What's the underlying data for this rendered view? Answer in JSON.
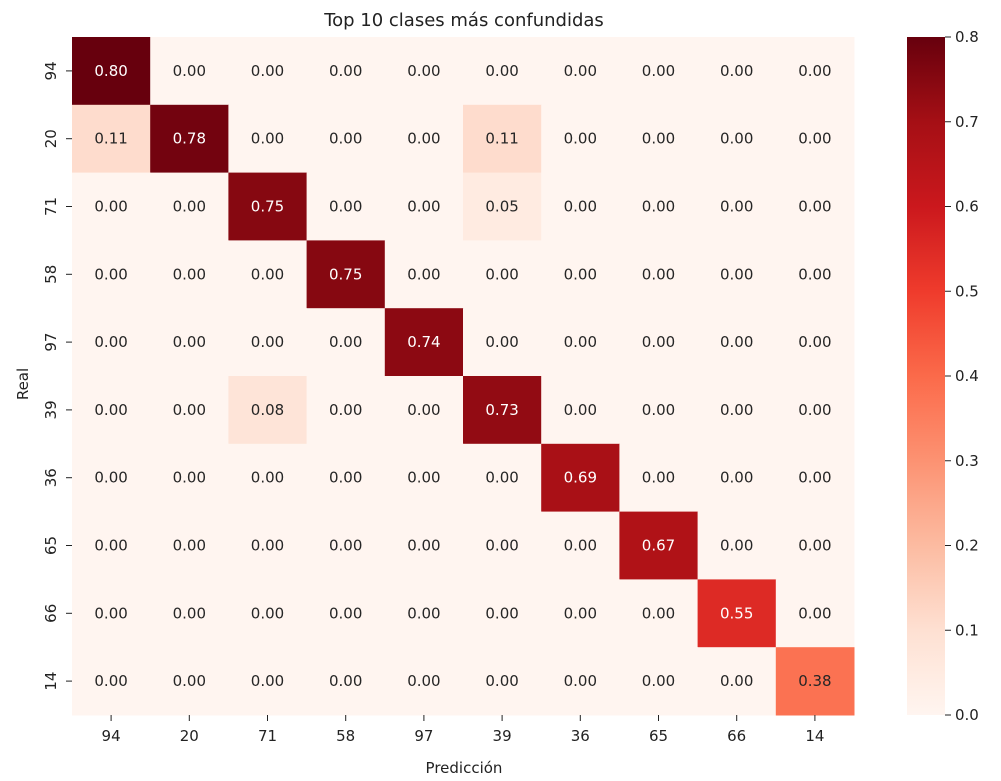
{
  "chart_data": {
    "type": "heatmap",
    "title": "Top 10 clases más confundidas",
    "xlabel": "Predicción",
    "ylabel": "Real",
    "x_categories": [
      "94",
      "20",
      "71",
      "58",
      "97",
      "39",
      "36",
      "65",
      "66",
      "14"
    ],
    "y_categories": [
      "94",
      "20",
      "71",
      "58",
      "97",
      "39",
      "36",
      "65",
      "66",
      "14"
    ],
    "values": [
      [
        0.8,
        0.0,
        0.0,
        0.0,
        0.0,
        0.0,
        0.0,
        0.0,
        0.0,
        0.0
      ],
      [
        0.11,
        0.78,
        0.0,
        0.0,
        0.0,
        0.11,
        0.0,
        0.0,
        0.0,
        0.0
      ],
      [
        0.0,
        0.0,
        0.75,
        0.0,
        0.0,
        0.05,
        0.0,
        0.0,
        0.0,
        0.0
      ],
      [
        0.0,
        0.0,
        0.0,
        0.75,
        0.0,
        0.0,
        0.0,
        0.0,
        0.0,
        0.0
      ],
      [
        0.0,
        0.0,
        0.0,
        0.0,
        0.74,
        0.0,
        0.0,
        0.0,
        0.0,
        0.0
      ],
      [
        0.0,
        0.0,
        0.08,
        0.0,
        0.0,
        0.73,
        0.0,
        0.0,
        0.0,
        0.0
      ],
      [
        0.0,
        0.0,
        0.0,
        0.0,
        0.0,
        0.0,
        0.69,
        0.0,
        0.0,
        0.0
      ],
      [
        0.0,
        0.0,
        0.0,
        0.0,
        0.0,
        0.0,
        0.0,
        0.67,
        0.0,
        0.0
      ],
      [
        0.0,
        0.0,
        0.0,
        0.0,
        0.0,
        0.0,
        0.0,
        0.0,
        0.55,
        0.0
      ],
      [
        0.0,
        0.0,
        0.0,
        0.0,
        0.0,
        0.0,
        0.0,
        0.0,
        0.0,
        0.38
      ]
    ],
    "value_format": "0.00",
    "colormap": "Reds",
    "colorbar": {
      "range": [
        0.0,
        0.8
      ],
      "ticks": [
        0.0,
        0.1,
        0.2,
        0.3,
        0.4,
        0.5,
        0.6,
        0.7,
        0.8
      ],
      "tick_labels": [
        "0.0",
        "0.1",
        "0.2",
        "0.3",
        "0.4",
        "0.5",
        "0.6",
        "0.7",
        "0.8"
      ],
      "placement": "right"
    },
    "grid": false
  }
}
